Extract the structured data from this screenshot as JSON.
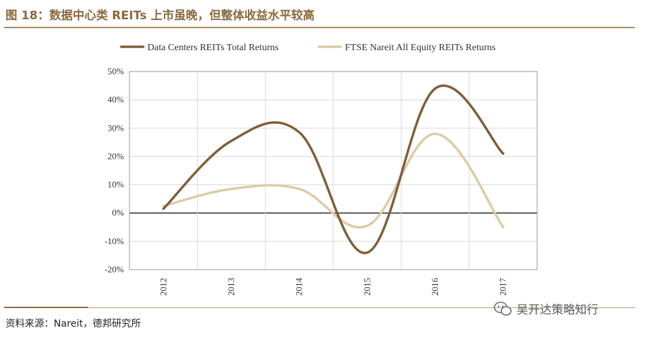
{
  "header": {
    "title": "图 18：数据中心类 REITs 上市虽晚，但整体收益水平较高"
  },
  "footer": {
    "source": "资料来源：Nareit，德邦研究所",
    "watermark": "吴开达策略知行",
    "watermark_icon": "wechat-icon"
  },
  "colors": {
    "series1": "#7f5f38",
    "series2": "#dccba6",
    "title": "#8b6a3e",
    "grid": "#d9d9d9"
  },
  "chart_data": {
    "type": "line",
    "x": [
      "2012",
      "2013",
      "2014",
      "2015",
      "2016",
      "2017"
    ],
    "series": [
      {
        "name": "Data Centers REITs Total  Returns",
        "values": [
          1.5,
          25.5,
          28.5,
          -14.0,
          44.0,
          21.0
        ]
      },
      {
        "name": "FTSE Nareit All Equity REITs Returns",
        "values": [
          2.5,
          8.5,
          8.5,
          -4.5,
          28.0,
          -5.0
        ]
      }
    ],
    "y_ticks": [
      "50%",
      "40%",
      "30%",
      "20%",
      "10%",
      "0%",
      "-10%",
      "-20%"
    ],
    "ylim": [
      -20,
      50
    ],
    "grid": true,
    "legend": "top",
    "smooth": true
  }
}
